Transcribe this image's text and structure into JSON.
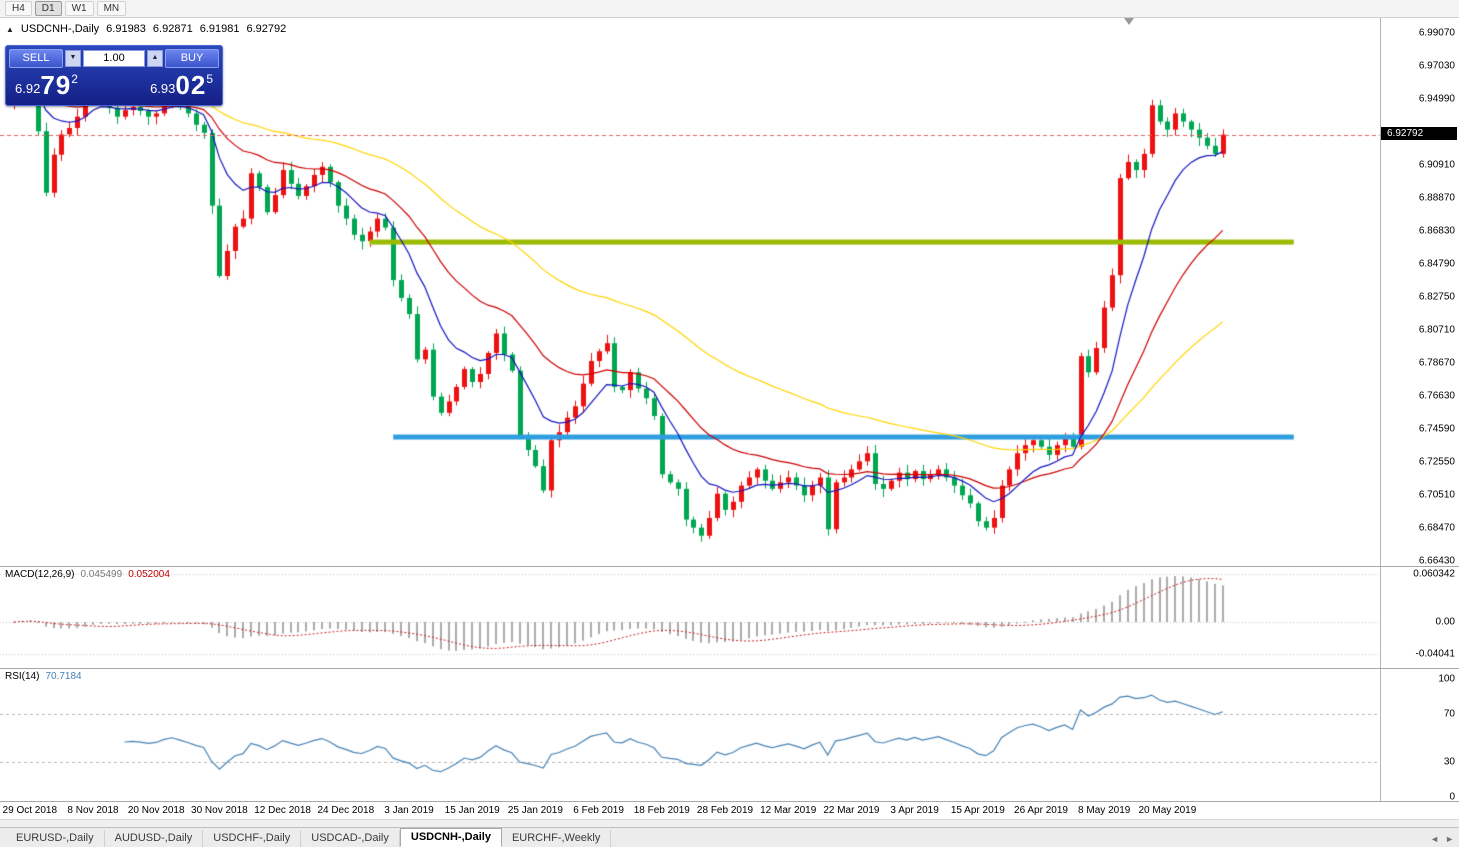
{
  "toolbar": {
    "timeframes": [
      "H4",
      "D1",
      "W1",
      "MN"
    ],
    "active": "D1"
  },
  "chart_header": {
    "collapse_icon": "▲",
    "symbol": "USDCNH-,Daily",
    "open": "6.91983",
    "high": "6.92871",
    "low": "6.91981",
    "close": "6.92792"
  },
  "trade_panel": {
    "sell_label": "SELL",
    "buy_label": "BUY",
    "volume": "1.00",
    "spin_down_icon": "▼",
    "spin_up_icon": "▲",
    "sell_price": {
      "small": "6.92",
      "big": "79",
      "sup": "2"
    },
    "buy_price": {
      "small": "6.93",
      "big": "02",
      "sup": "5"
    }
  },
  "price_axis": {
    "current": "6.92792",
    "labels": [
      "6.99070",
      "6.97030",
      "6.94990",
      "6.92950",
      "6.90910",
      "6.88870",
      "6.86830",
      "6.84790",
      "6.82750",
      "6.80710",
      "6.78670",
      "6.76630",
      "6.74590",
      "6.72550",
      "6.70510",
      "6.68470",
      "6.66430"
    ]
  },
  "macd": {
    "title": "MACD(12,26,9)",
    "value_main": "0.045499",
    "value_signal": "0.052004",
    "scale_labels": [
      "0.060342",
      "0.00",
      "-0.04041"
    ],
    "scale_values": [
      0.060342,
      0,
      -0.04041
    ]
  },
  "rsi": {
    "title": "RSI(14)",
    "value": "70.7184",
    "scale_labels": [
      "100",
      "70",
      "30",
      "0"
    ],
    "scale_values": [
      100,
      70,
      30,
      0
    ],
    "levels": [
      70,
      30
    ]
  },
  "date_axis": {
    "labels": [
      "29 Oct 2018",
      "8 Nov 2018",
      "20 Nov 2018",
      "30 Nov 2018",
      "12 Dec 2018",
      "24 Dec 2018",
      "3 Jan 2019",
      "15 Jan 2019",
      "25 Jan 2019",
      "6 Feb 2019",
      "18 Feb 2019",
      "28 Feb 2019",
      "12 Mar 2019",
      "22 Mar 2019",
      "3 Apr 2019",
      "15 Apr 2019",
      "26 Apr 2019",
      "8 May 2019",
      "20 May 2019"
    ]
  },
  "tabs": {
    "items": [
      {
        "label": "EURUSD-,Daily",
        "active": false
      },
      {
        "label": "AUDUSD-,Daily",
        "active": false
      },
      {
        "label": "USDCHF-,Daily",
        "active": false
      },
      {
        "label": "USDCAD-,Daily",
        "active": false
      },
      {
        "label": "USDCNH-,Daily",
        "active": true
      },
      {
        "label": "EURCHF-,Weekly",
        "active": false
      }
    ],
    "scroll_left_icon": "◄",
    "scroll_right_icon": "►"
  },
  "chart_data": {
    "type": "candlestick",
    "symbol": "USDCNH",
    "timeframe": "Daily",
    "bid": 6.92792,
    "first_open": 6.948,
    "closes": [
      6.956,
      6.972,
      6.9655,
      6.93,
      6.892,
      6.9155,
      6.928,
      6.932,
      6.939,
      6.9505,
      6.962,
      6.955,
      6.9445,
      6.939,
      6.943,
      6.945,
      6.9425,
      6.939,
      6.941,
      6.948,
      6.952,
      6.9465,
      6.941,
      6.934,
      6.929,
      6.884,
      6.8405,
      6.856,
      6.871,
      6.876,
      6.904,
      6.8955,
      6.88,
      6.8905,
      6.906,
      6.8975,
      6.89,
      6.896,
      6.903,
      6.908,
      6.8985,
      6.884,
      6.876,
      6.866,
      6.862,
      6.868,
      6.876,
      6.8705,
      6.838,
      6.827,
      6.817,
      6.789,
      6.795,
      6.766,
      6.756,
      6.763,
      6.772,
      6.783,
      6.775,
      6.78,
      6.793,
      6.805,
      6.792,
      6.782,
      6.742,
      6.733,
      6.723,
      6.708,
      6.739,
      6.744,
      6.753,
      6.76,
      6.774,
      6.788,
      6.794,
      6.799,
      6.772,
      6.77,
      6.781,
      6.771,
      6.765,
      6.754,
      6.718,
      6.713,
      6.709,
      6.69,
      6.685,
      6.68,
      6.691,
      6.706,
      6.696,
      6.701,
      6.711,
      6.716,
      6.721,
      6.714,
      6.709,
      6.713,
      6.716,
      6.711,
      6.705,
      6.711,
      6.716,
      6.684,
      6.713,
      6.716,
      6.721,
      6.726,
      6.731,
      6.712,
      6.709,
      6.714,
      6.719,
      6.715,
      6.72,
      6.715,
      6.718,
      6.721,
      6.716,
      6.711,
      6.705,
      6.7,
      6.689,
      6.685,
      6.691,
      6.711,
      6.721,
      6.731,
      6.736,
      6.739,
      6.735,
      6.73,
      6.736,
      6.741,
      6.735,
      6.791,
      6.781,
      6.796,
      6.821,
      6.841,
      6.901,
      6.911,
      6.906,
      6.916,
      6.946,
      6.936,
      6.931,
      6.941,
      6.936,
      6.931,
      6.926,
      6.921,
      6.916,
      6.9279
    ],
    "ma_periods": {
      "fast": 10,
      "mid": 25,
      "slow": 60
    },
    "macd_params": {
      "fast": 12,
      "slow": 26,
      "signal": 9
    },
    "rsi_period": 14,
    "colors": {
      "bull": "#ee1111",
      "bear": "#00a651",
      "ma_fast": "#1515c0",
      "ma_mid": "#cc0000",
      "ma_slow": "#ffd400",
      "macd_hist": "#ababab",
      "macd_signal": "#c82020",
      "rsi_line": "#4682b4",
      "bid_line": "#e06060",
      "grid": "#c8c8c8"
    },
    "annotations": [
      {
        "name": "resistance-line",
        "price": 6.8615,
        "color": "#9bbb00",
        "from_index": 45,
        "to_index": 162,
        "width": 5
      },
      {
        "name": "support-line",
        "price": 6.741,
        "color": "#2f9ee0",
        "from_index": 48,
        "to_index": 162,
        "width": 5
      }
    ],
    "y_axis_range": [
      6.6643,
      6.9907
    ]
  }
}
